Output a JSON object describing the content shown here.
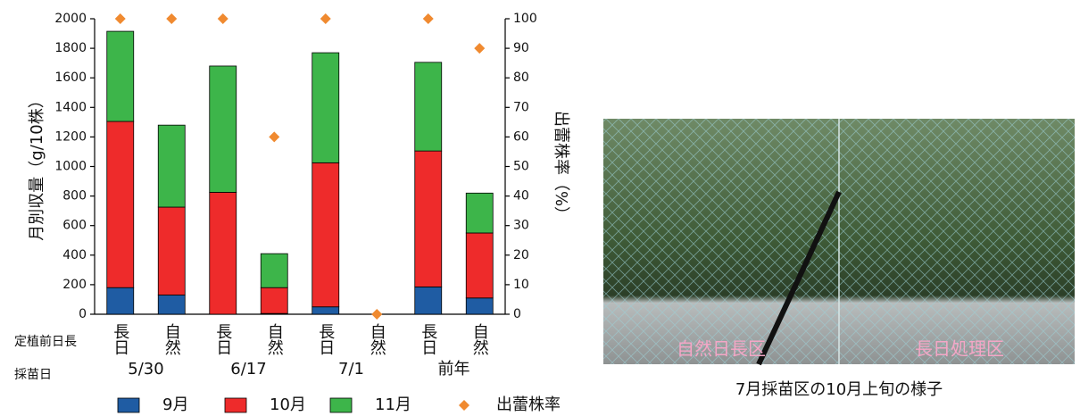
{
  "chart_data": {
    "type": "bar",
    "stacked": true,
    "y_label": "月別収量（g/10株）",
    "y2_label": "出蕾株率（%）",
    "category_axis_title": "定植前日長",
    "group_axis_title": "採苗日",
    "categories": [
      "長日",
      "自然",
      "長日",
      "自然",
      "長日",
      "自然",
      "長日",
      "自然"
    ],
    "groups": [
      "5/30",
      "6/17",
      "7/1",
      "前年"
    ],
    "series": [
      {
        "name": "9月",
        "color": "#1f5ca3",
        "values": [
          180,
          130,
          0,
          5,
          50,
          0,
          185,
          110
        ]
      },
      {
        "name": "10月",
        "color": "#ee2b2b",
        "values": [
          1125,
          595,
          825,
          175,
          975,
          0,
          920,
          440
        ]
      },
      {
        "name": "11月",
        "color": "#3db54a",
        "values": [
          610,
          555,
          855,
          230,
          745,
          0,
          600,
          270
        ]
      },
      {
        "name": "出蕾株率",
        "color": "#f08a30",
        "axis": "y2",
        "marker": "diamond",
        "values": [
          100,
          100,
          100,
          60,
          100,
          0,
          100,
          90
        ]
      }
    ],
    "ylim": [
      0,
      2000
    ],
    "yticks": [
      0,
      200,
      400,
      600,
      800,
      1000,
      1200,
      1400,
      1600,
      1800,
      2000
    ],
    "y2lim": [
      0,
      100
    ],
    "y2ticks": [
      0,
      10,
      20,
      30,
      40,
      50,
      60,
      70,
      80,
      90,
      100
    ]
  },
  "photo": {
    "left_label": "自然日長区",
    "right_label": "長日処理区",
    "caption": "7月採苗区の10月上旬の様子"
  }
}
